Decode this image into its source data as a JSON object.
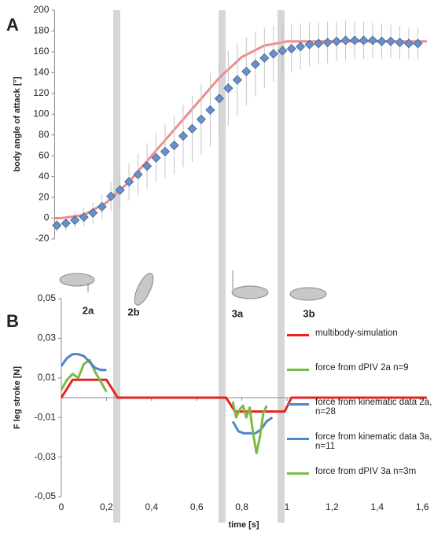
{
  "chart_data": [
    {
      "type": "scatter",
      "panel": "A",
      "y_label": "body angle of attack [°]",
      "xlim": [
        -0.03,
        1.62
      ],
      "ylim": [
        -20,
        200
      ],
      "yticks": [
        -20,
        0,
        20,
        40,
        60,
        80,
        100,
        120,
        140,
        160,
        180,
        200
      ],
      "series": [
        {
          "type": "line",
          "color": "#f28b8b",
          "x": [
            -0.03,
            0,
            0.1,
            0.2,
            0.3,
            0.4,
            0.5,
            0.6,
            0.7,
            0.8,
            0.9,
            1.0,
            1.62
          ],
          "values": [
            0,
            0,
            3,
            15,
            35,
            60,
            85,
            110,
            135,
            155,
            166,
            170,
            170
          ]
        },
        {
          "type": "scatter",
          "color": "#6b8fc9",
          "x": [
            -0.02,
            0.02,
            0.06,
            0.1,
            0.14,
            0.18,
            0.22,
            0.26,
            0.3,
            0.34,
            0.38,
            0.42,
            0.46,
            0.5,
            0.54,
            0.58,
            0.62,
            0.66,
            0.7,
            0.74,
            0.78,
            0.82,
            0.86,
            0.9,
            0.94,
            0.98,
            1.02,
            1.06,
            1.1,
            1.14,
            1.18,
            1.22,
            1.26,
            1.3,
            1.34,
            1.38,
            1.42,
            1.46,
            1.5,
            1.54,
            1.58
          ],
          "values": [
            -7,
            -5,
            -2,
            1,
            5,
            11,
            21,
            27,
            35,
            42,
            50,
            58,
            64,
            70,
            79,
            86,
            95,
            104,
            115,
            125,
            133,
            141,
            148,
            154,
            158,
            161,
            163,
            165,
            167,
            168,
            169,
            170,
            171,
            171,
            171,
            171,
            170,
            170,
            169,
            168,
            168
          ],
          "errors": [
            6,
            7,
            8,
            9,
            10,
            12,
            14,
            16,
            18,
            20,
            22,
            24,
            26,
            28,
            30,
            32,
            34,
            35,
            36,
            36,
            35,
            33,
            31,
            29,
            27,
            25,
            23,
            22,
            21,
            20,
            20,
            19,
            19,
            18,
            18,
            17,
            17,
            16,
            16,
            15,
            15
          ]
        }
      ]
    },
    {
      "type": "line",
      "panel": "B",
      "y_label": "F leg stroke [N]",
      "x_label": "time [s]",
      "annotations": [
        "2a",
        "2b",
        "3a",
        "3b"
      ],
      "xlim": [
        0,
        1.62
      ],
      "ylim": [
        -0.05,
        0.05
      ],
      "yticks": [
        {
          "value": -0.05,
          "label": "-0,05"
        },
        {
          "value": -0.03,
          "label": "-0,03"
        },
        {
          "value": -0.01,
          "label": "-0,01"
        },
        {
          "value": 0.01,
          "label": "0,01"
        },
        {
          "value": 0.03,
          "label": "0,03"
        },
        {
          "value": 0.05,
          "label": "0,05"
        }
      ],
      "xticks": [
        0,
        {
          "value": 0.2,
          "label": "0,2"
        },
        {
          "value": 0.4,
          "label": "0,4"
        },
        {
          "value": 0.6,
          "label": "0,6"
        },
        {
          "value": 0.8,
          "label": "0,8"
        },
        1,
        {
          "value": 1.2,
          "label": "1,2"
        },
        {
          "value": 1.4,
          "label": "1,4"
        },
        {
          "value": 1.6,
          "label": "1,6"
        }
      ],
      "series": [
        {
          "name": "multibody-simulation",
          "color": "#e8231f",
          "x": [
            0,
            0.05,
            0.2,
            0.25,
            0.73,
            0.77,
            0.99,
            1.02,
            1.62
          ],
          "values": [
            0,
            0.009,
            0.009,
            0,
            0,
            -0.007,
            -0.007,
            0,
            0
          ]
        },
        {
          "name": "force from dPIV 2a n=9",
          "color": "#7dba45",
          "x": [
            0,
            0.025,
            0.05,
            0.075,
            0.1,
            0.125,
            0.15,
            0.175,
            0.2
          ],
          "values": [
            0.004,
            0.009,
            0.012,
            0.01,
            0.017,
            0.019,
            0.013,
            0.008,
            0.003
          ]
        },
        {
          "name": "force from kinematic data 2a, n=28",
          "color": "#4f86c6",
          "x": [
            0,
            0.025,
            0.05,
            0.075,
            0.1,
            0.125,
            0.15,
            0.175,
            0.2
          ],
          "values": [
            0.016,
            0.02,
            0.022,
            0.022,
            0.021,
            0.018,
            0.015,
            0.014,
            0.014
          ]
        },
        {
          "name": "force from kinematic data 3a, n=11",
          "color": "#4f86c6",
          "x": [
            0.76,
            0.785,
            0.81,
            0.835,
            0.86,
            0.885,
            0.91,
            0.935
          ],
          "values": [
            -0.012,
            -0.017,
            -0.018,
            -0.018,
            -0.018,
            -0.016,
            -0.012,
            -0.01
          ]
        },
        {
          "name": "force from dPIV 3a n=3m",
          "color": "#7dba45",
          "x": [
            0.76,
            0.775,
            0.79,
            0.805,
            0.82,
            0.835,
            0.85,
            0.865,
            0.88,
            0.895,
            0.91
          ],
          "values": [
            -0.002,
            -0.01,
            -0.006,
            -0.004,
            -0.01,
            -0.005,
            -0.018,
            -0.028,
            -0.02,
            -0.008,
            -0.004
          ]
        }
      ]
    }
  ]
}
